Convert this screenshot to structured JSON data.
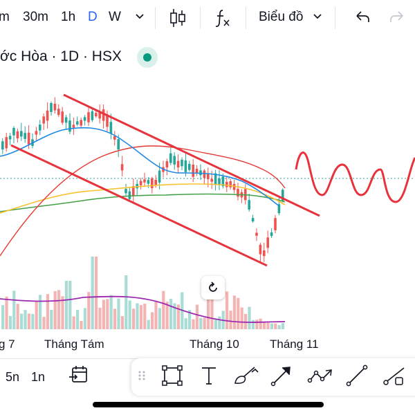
{
  "toolbar": {
    "timeframes": [
      "m",
      "30m",
      "1h",
      "D",
      "W"
    ],
    "active_timeframe": "D",
    "chart_type_label": "Biểu đồ",
    "icons": [
      "chevron-down-icon",
      "candles-icon",
      "indicators-icon",
      "undo-icon",
      "redo-icon"
    ]
  },
  "legend": {
    "symbol_text": "ớc Hòa · 1D · HSX",
    "status_color": "#089981"
  },
  "xaxis": {
    "labels": [
      "g 7",
      "Tháng Tám",
      "Tháng 10",
      "Tháng 11"
    ]
  },
  "bottom": {
    "ranges": [
      "5n",
      "1n"
    ],
    "draw_tools": [
      "goto-date-icon",
      "rectangle-tool-icon",
      "text-tool-icon",
      "brush-tool-icon",
      "arrow-tool-icon",
      "path-tool-icon",
      "trend-line-tool-icon",
      "ray-tool-icon"
    ]
  },
  "colors": {
    "up": "#26a69a",
    "down": "#ef5350",
    "accent": "#2962ff",
    "drawing": "#e8333c"
  }
}
